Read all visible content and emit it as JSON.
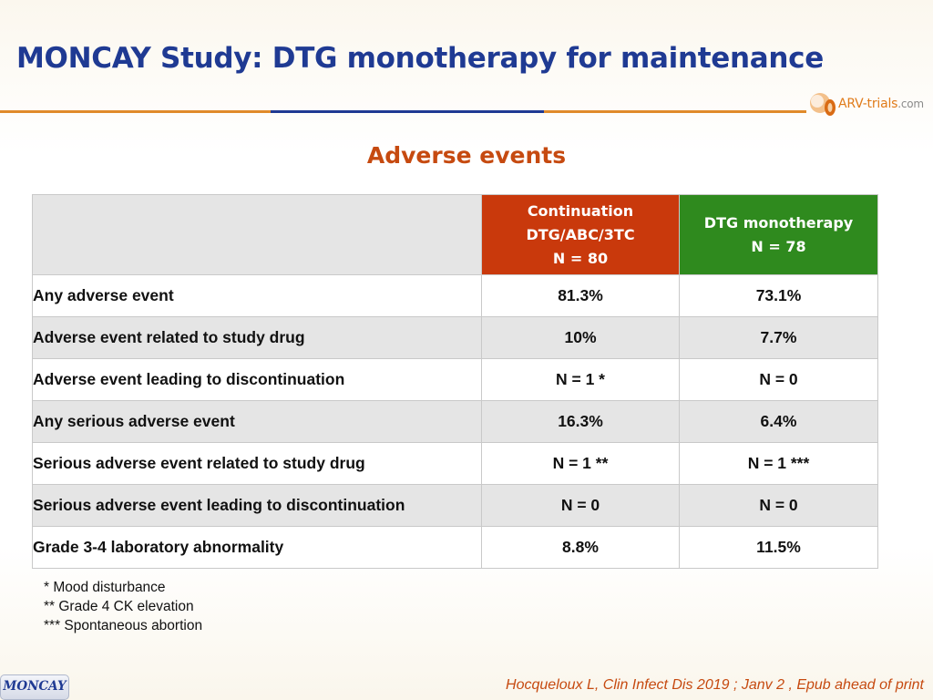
{
  "slide": {
    "title": "MONCAY Study: DTG monotherapy for maintenance",
    "subtitle": "Adverse events"
  },
  "logo": {
    "icon": "arv-trials-logo-icon",
    "name": "ARV-trials",
    "suffix": ".com"
  },
  "colors": {
    "title": "#1f3a93",
    "accent": "#c64a10",
    "continuation_header": "#c9390c",
    "monotherapy_header": "#2f8a1e",
    "row_shade": "#e5e5e5"
  },
  "table": {
    "columns": [
      {
        "lines": [
          "Continuation",
          "DTG/ABC/3TC",
          "N = 80"
        ]
      },
      {
        "lines": [
          "DTG monotherapy",
          "N = 78"
        ]
      }
    ],
    "rows": [
      {
        "label": "Any adverse event",
        "continuation": "81.3%",
        "monotherapy": "73.1%"
      },
      {
        "label": "Adverse event related to study drug",
        "continuation": "10%",
        "monotherapy": "7.7%"
      },
      {
        "label": "Adverse event leading to discontinuation",
        "continuation": "N = 1 *",
        "monotherapy": "N = 0"
      },
      {
        "label": "Any serious adverse event",
        "continuation": "16.3%",
        "monotherapy": "6.4%"
      },
      {
        "label": "Serious adverse event related to study drug",
        "continuation": "N = 1 **",
        "monotherapy": "N = 1 ***"
      },
      {
        "label": "Serious adverse event leading to discontinuation",
        "continuation": "N = 0",
        "monotherapy": "N = 0"
      },
      {
        "label": "Grade 3-4 laboratory abnormality",
        "continuation": "8.8%",
        "monotherapy": "11.5%"
      }
    ]
  },
  "footnotes": [
    "* Mood disturbance",
    "** Grade 4 CK elevation",
    "*** Spontaneous abortion"
  ],
  "badge": "MONCAY",
  "citation": "Hocqueloux L, Clin Infect Dis 2019 ; Janv 2 , Epub ahead of print"
}
